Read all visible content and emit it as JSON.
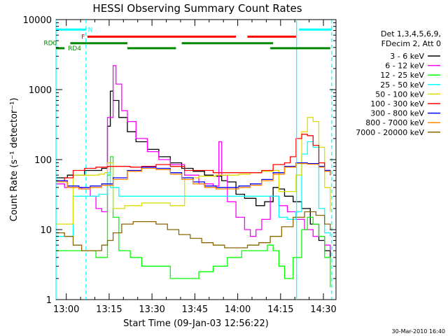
{
  "chart_data": {
    "type": "line",
    "title": "HESSI Observing Summary Count Rates",
    "xlabel": "Start Time (09-Jan-03 12:56:22)",
    "ylabel": "Count Rate (s⁻¹ detector⁻¹)",
    "y_scale": "log",
    "ylim": [
      1,
      10000
    ],
    "xlim_minutes_since_start": [
      0,
      98
    ],
    "x_ticks": [
      {
        "label": "13:00",
        "t": 3.6
      },
      {
        "label": "13:15",
        "t": 18.6
      },
      {
        "label": "13:30",
        "t": 33.6
      },
      {
        "label": "13:45",
        "t": 48.6
      },
      {
        "label": "14:00",
        "t": 63.6
      },
      {
        "label": "14:15",
        "t": 78.6
      },
      {
        "label": "14:30",
        "t": 93.6
      }
    ],
    "y_ticks": [
      {
        "label": "1",
        "v": 1
      },
      {
        "label": "10",
        "v": 10
      },
      {
        "label": "100",
        "v": 100
      },
      {
        "label": "1000",
        "v": 1000
      },
      {
        "label": "10000",
        "v": 10000
      }
    ],
    "legend": {
      "placement": "right",
      "header": [
        "Det 1,3,4,5,6,9,",
        "FDecim 2, Att 0"
      ]
    },
    "series": [
      {
        "name": "3 - 6 keV",
        "color": "#000000",
        "points": [
          [
            0,
            55
          ],
          [
            4,
            60
          ],
          [
            10,
            70
          ],
          [
            16,
            75
          ],
          [
            18,
            300
          ],
          [
            19,
            950
          ],
          [
            20,
            700
          ],
          [
            22,
            400
          ],
          [
            25,
            250
          ],
          [
            28,
            180
          ],
          [
            32,
            140
          ],
          [
            36,
            110
          ],
          [
            40,
            90
          ],
          [
            44,
            75
          ],
          [
            48,
            68
          ],
          [
            52,
            60
          ],
          [
            55,
            58
          ],
          [
            58,
            50
          ],
          [
            60,
            48
          ],
          [
            63,
            32
          ],
          [
            66,
            28
          ],
          [
            70,
            22
          ],
          [
            73,
            25
          ],
          [
            76,
            40
          ],
          [
            78,
            38
          ],
          [
            80,
            30
          ],
          [
            83,
            25
          ],
          [
            86,
            20
          ],
          [
            89,
            12
          ],
          [
            92,
            7
          ],
          [
            94,
            5
          ],
          [
            96,
            4
          ]
        ]
      },
      {
        "name": "6 - 12 keV",
        "color": "#ff00ff",
        "points": [
          [
            0,
            45
          ],
          [
            3,
            40
          ],
          [
            9,
            38
          ],
          [
            12,
            30
          ],
          [
            14,
            20
          ],
          [
            16,
            18
          ],
          [
            18,
            400
          ],
          [
            20,
            2200
          ],
          [
            21,
            1200
          ],
          [
            23,
            500
          ],
          [
            25,
            350
          ],
          [
            28,
            200
          ],
          [
            32,
            130
          ],
          [
            36,
            100
          ],
          [
            40,
            85
          ],
          [
            45,
            60
          ],
          [
            50,
            45
          ],
          [
            55,
            42
          ],
          [
            57,
            180
          ],
          [
            58,
            60
          ],
          [
            60,
            25
          ],
          [
            63,
            15
          ],
          [
            66,
            10
          ],
          [
            68,
            8
          ],
          [
            70,
            10
          ],
          [
            72,
            14
          ],
          [
            75,
            30
          ],
          [
            78,
            22
          ],
          [
            81,
            18
          ],
          [
            84,
            14
          ],
          [
            87,
            10
          ],
          [
            90,
            8
          ],
          [
            94,
            6
          ],
          [
            96,
            5
          ]
        ]
      },
      {
        "name": "12 - 25 keV",
        "color": "#00ff00",
        "points": [
          [
            0,
            5
          ],
          [
            3,
            5
          ],
          [
            9,
            5
          ],
          [
            14,
            4
          ],
          [
            16,
            4
          ],
          [
            18,
            60
          ],
          [
            19,
            110
          ],
          [
            20,
            15
          ],
          [
            22,
            5
          ],
          [
            26,
            4
          ],
          [
            30,
            3
          ],
          [
            35,
            3
          ],
          [
            40,
            2
          ],
          [
            45,
            2
          ],
          [
            50,
            2.5
          ],
          [
            55,
            3
          ],
          [
            60,
            4
          ],
          [
            65,
            5
          ],
          [
            70,
            5
          ],
          [
            74,
            6
          ],
          [
            76,
            5
          ],
          [
            78,
            3
          ],
          [
            80,
            2
          ],
          [
            83,
            4
          ],
          [
            86,
            10
          ],
          [
            88,
            15
          ],
          [
            90,
            12
          ],
          [
            92,
            8
          ],
          [
            94,
            4
          ],
          [
            96,
            1.5
          ]
        ]
      },
      {
        "name": "25 - 50 keV",
        "color": "#00ffff",
        "points": [
          [
            0,
            8
          ],
          [
            5,
            8
          ],
          [
            6,
            30
          ],
          [
            10,
            30
          ],
          [
            15,
            32
          ],
          [
            17,
            32
          ],
          [
            18,
            65
          ],
          [
            19,
            40
          ],
          [
            22,
            30
          ],
          [
            30,
            30
          ],
          [
            38,
            30
          ],
          [
            44,
            30
          ],
          [
            45,
            30
          ],
          [
            50,
            30
          ],
          [
            56,
            30
          ],
          [
            62,
            30
          ],
          [
            68,
            30
          ],
          [
            72,
            30
          ],
          [
            76,
            30
          ],
          [
            78,
            15
          ],
          [
            81,
            14
          ],
          [
            84,
            18
          ],
          [
            86,
            120
          ],
          [
            88,
            180
          ],
          [
            90,
            150
          ],
          [
            92,
            20
          ],
          [
            94,
            9
          ],
          [
            96,
            8
          ]
        ]
      },
      {
        "name": "50 - 100 keV",
        "color": "#dddd00",
        "points": [
          [
            0,
            12
          ],
          [
            5,
            12
          ],
          [
            6,
            60
          ],
          [
            10,
            60
          ],
          [
            15,
            62
          ],
          [
            17,
            65
          ],
          [
            18,
            90
          ],
          [
            20,
            20
          ],
          [
            24,
            22
          ],
          [
            30,
            24
          ],
          [
            36,
            24
          ],
          [
            40,
            22
          ],
          [
            44,
            22
          ],
          [
            45,
            55
          ],
          [
            50,
            58
          ],
          [
            56,
            60
          ],
          [
            60,
            60
          ],
          [
            64,
            62
          ],
          [
            68,
            65
          ],
          [
            72,
            68
          ],
          [
            76,
            70
          ],
          [
            78,
            35
          ],
          [
            81,
            35
          ],
          [
            84,
            60
          ],
          [
            86,
            250
          ],
          [
            88,
            400
          ],
          [
            90,
            350
          ],
          [
            92,
            150
          ],
          [
            94,
            40
          ],
          [
            96,
            18
          ]
        ]
      },
      {
        "name": "100 - 300 keV",
        "color": "#ff0000",
        "points": [
          [
            0,
            50
          ],
          [
            3,
            55
          ],
          [
            6,
            70
          ],
          [
            10,
            75
          ],
          [
            14,
            78
          ],
          [
            18,
            80
          ],
          [
            22,
            80
          ],
          [
            26,
            78
          ],
          [
            30,
            80
          ],
          [
            35,
            85
          ],
          [
            40,
            80
          ],
          [
            45,
            70
          ],
          [
            50,
            70
          ],
          [
            55,
            65
          ],
          [
            60,
            65
          ],
          [
            64,
            65
          ],
          [
            68,
            65
          ],
          [
            72,
            70
          ],
          [
            76,
            85
          ],
          [
            80,
            90
          ],
          [
            82,
            110
          ],
          [
            84,
            200
          ],
          [
            86,
            230
          ],
          [
            88,
            220
          ],
          [
            90,
            160
          ],
          [
            92,
            90
          ],
          [
            94,
            70
          ],
          [
            96,
            60
          ]
        ]
      },
      {
        "name": "300 - 800 keV",
        "color": "#0000ff",
        "points": [
          [
            0,
            50
          ],
          [
            4,
            42
          ],
          [
            8,
            40
          ],
          [
            12,
            42
          ],
          [
            16,
            45
          ],
          [
            20,
            55
          ],
          [
            25,
            70
          ],
          [
            30,
            78
          ],
          [
            35,
            75
          ],
          [
            40,
            65
          ],
          [
            44,
            55
          ],
          [
            48,
            48
          ],
          [
            52,
            42
          ],
          [
            56,
            40
          ],
          [
            60,
            40
          ],
          [
            64,
            42
          ],
          [
            68,
            45
          ],
          [
            72,
            52
          ],
          [
            76,
            65
          ],
          [
            80,
            80
          ],
          [
            84,
            90
          ],
          [
            88,
            88
          ],
          [
            92,
            80
          ],
          [
            94,
            70
          ],
          [
            96,
            65
          ]
        ]
      },
      {
        "name": "800 - 7000 keV",
        "color": "#ff8800",
        "points": [
          [
            0,
            48
          ],
          [
            4,
            40
          ],
          [
            8,
            38
          ],
          [
            12,
            40
          ],
          [
            16,
            43
          ],
          [
            20,
            52
          ],
          [
            25,
            68
          ],
          [
            30,
            75
          ],
          [
            35,
            72
          ],
          [
            40,
            62
          ],
          [
            44,
            52
          ],
          [
            48,
            45
          ],
          [
            52,
            40
          ],
          [
            56,
            38
          ],
          [
            60,
            38
          ],
          [
            64,
            40
          ],
          [
            68,
            43
          ],
          [
            72,
            50
          ],
          [
            76,
            62
          ],
          [
            80,
            78
          ],
          [
            84,
            88
          ],
          [
            88,
            86
          ],
          [
            92,
            78
          ],
          [
            94,
            68
          ],
          [
            96,
            62
          ]
        ]
      },
      {
        "name": "7000 - 20000 keV",
        "color": "#886600",
        "points": [
          [
            0,
            9
          ],
          [
            3,
            8
          ],
          [
            6,
            6
          ],
          [
            9,
            5
          ],
          [
            12,
            5
          ],
          [
            16,
            6
          ],
          [
            18,
            7
          ],
          [
            20,
            9
          ],
          [
            23,
            12
          ],
          [
            27,
            13
          ],
          [
            31,
            13
          ],
          [
            35,
            12
          ],
          [
            39,
            10
          ],
          [
            43,
            8.5
          ],
          [
            47,
            7.5
          ],
          [
            51,
            6.5
          ],
          [
            55,
            6
          ],
          [
            59,
            5.5
          ],
          [
            63,
            5.5
          ],
          [
            67,
            6
          ],
          [
            71,
            6.5
          ],
          [
            75,
            8
          ],
          [
            79,
            11
          ],
          [
            83,
            15
          ],
          [
            87,
            18
          ],
          [
            91,
            16
          ],
          [
            94,
            12
          ],
          [
            96,
            10
          ]
        ]
      }
    ],
    "annotations": {
      "vertical_lines": [
        {
          "t": 0,
          "color": "#00ffff"
        },
        {
          "t": 10.5,
          "color": "#00ffff",
          "dashed": true
        },
        {
          "t": 84.2,
          "color": "#00ffff"
        },
        {
          "t": 96.5,
          "color": "#00ffff",
          "dashed": true
        }
      ],
      "flag_bars": [
        {
          "label": "N",
          "color": "#00ffff",
          "y": 7200,
          "segments": [
            [
              0,
              10.5
            ],
            [
              85,
              96.5
            ]
          ],
          "label_t": 12
        },
        {
          "label": "F",
          "color": "#ff0000",
          "y": 5700,
          "segments": [
            [
              11,
              63
            ],
            [
              67,
              84
            ]
          ],
          "label_t": 9.5
        },
        {
          "label": "RD0",
          "color": "#008800",
          "y": 4600,
          "segments": [
            [
              5,
              25
            ],
            [
              44,
              76
            ]
          ],
          "label_t": -2
        },
        {
          "label": "RD4",
          "color": "#008800",
          "y": 3900,
          "segments": [
            [
              0,
              3
            ],
            [
              25,
              42
            ],
            [
              75,
              96
            ]
          ],
          "label_t": 6.5
        }
      ]
    }
  },
  "footer": {
    "timestamp": "30-Mar-2010 16:40"
  }
}
